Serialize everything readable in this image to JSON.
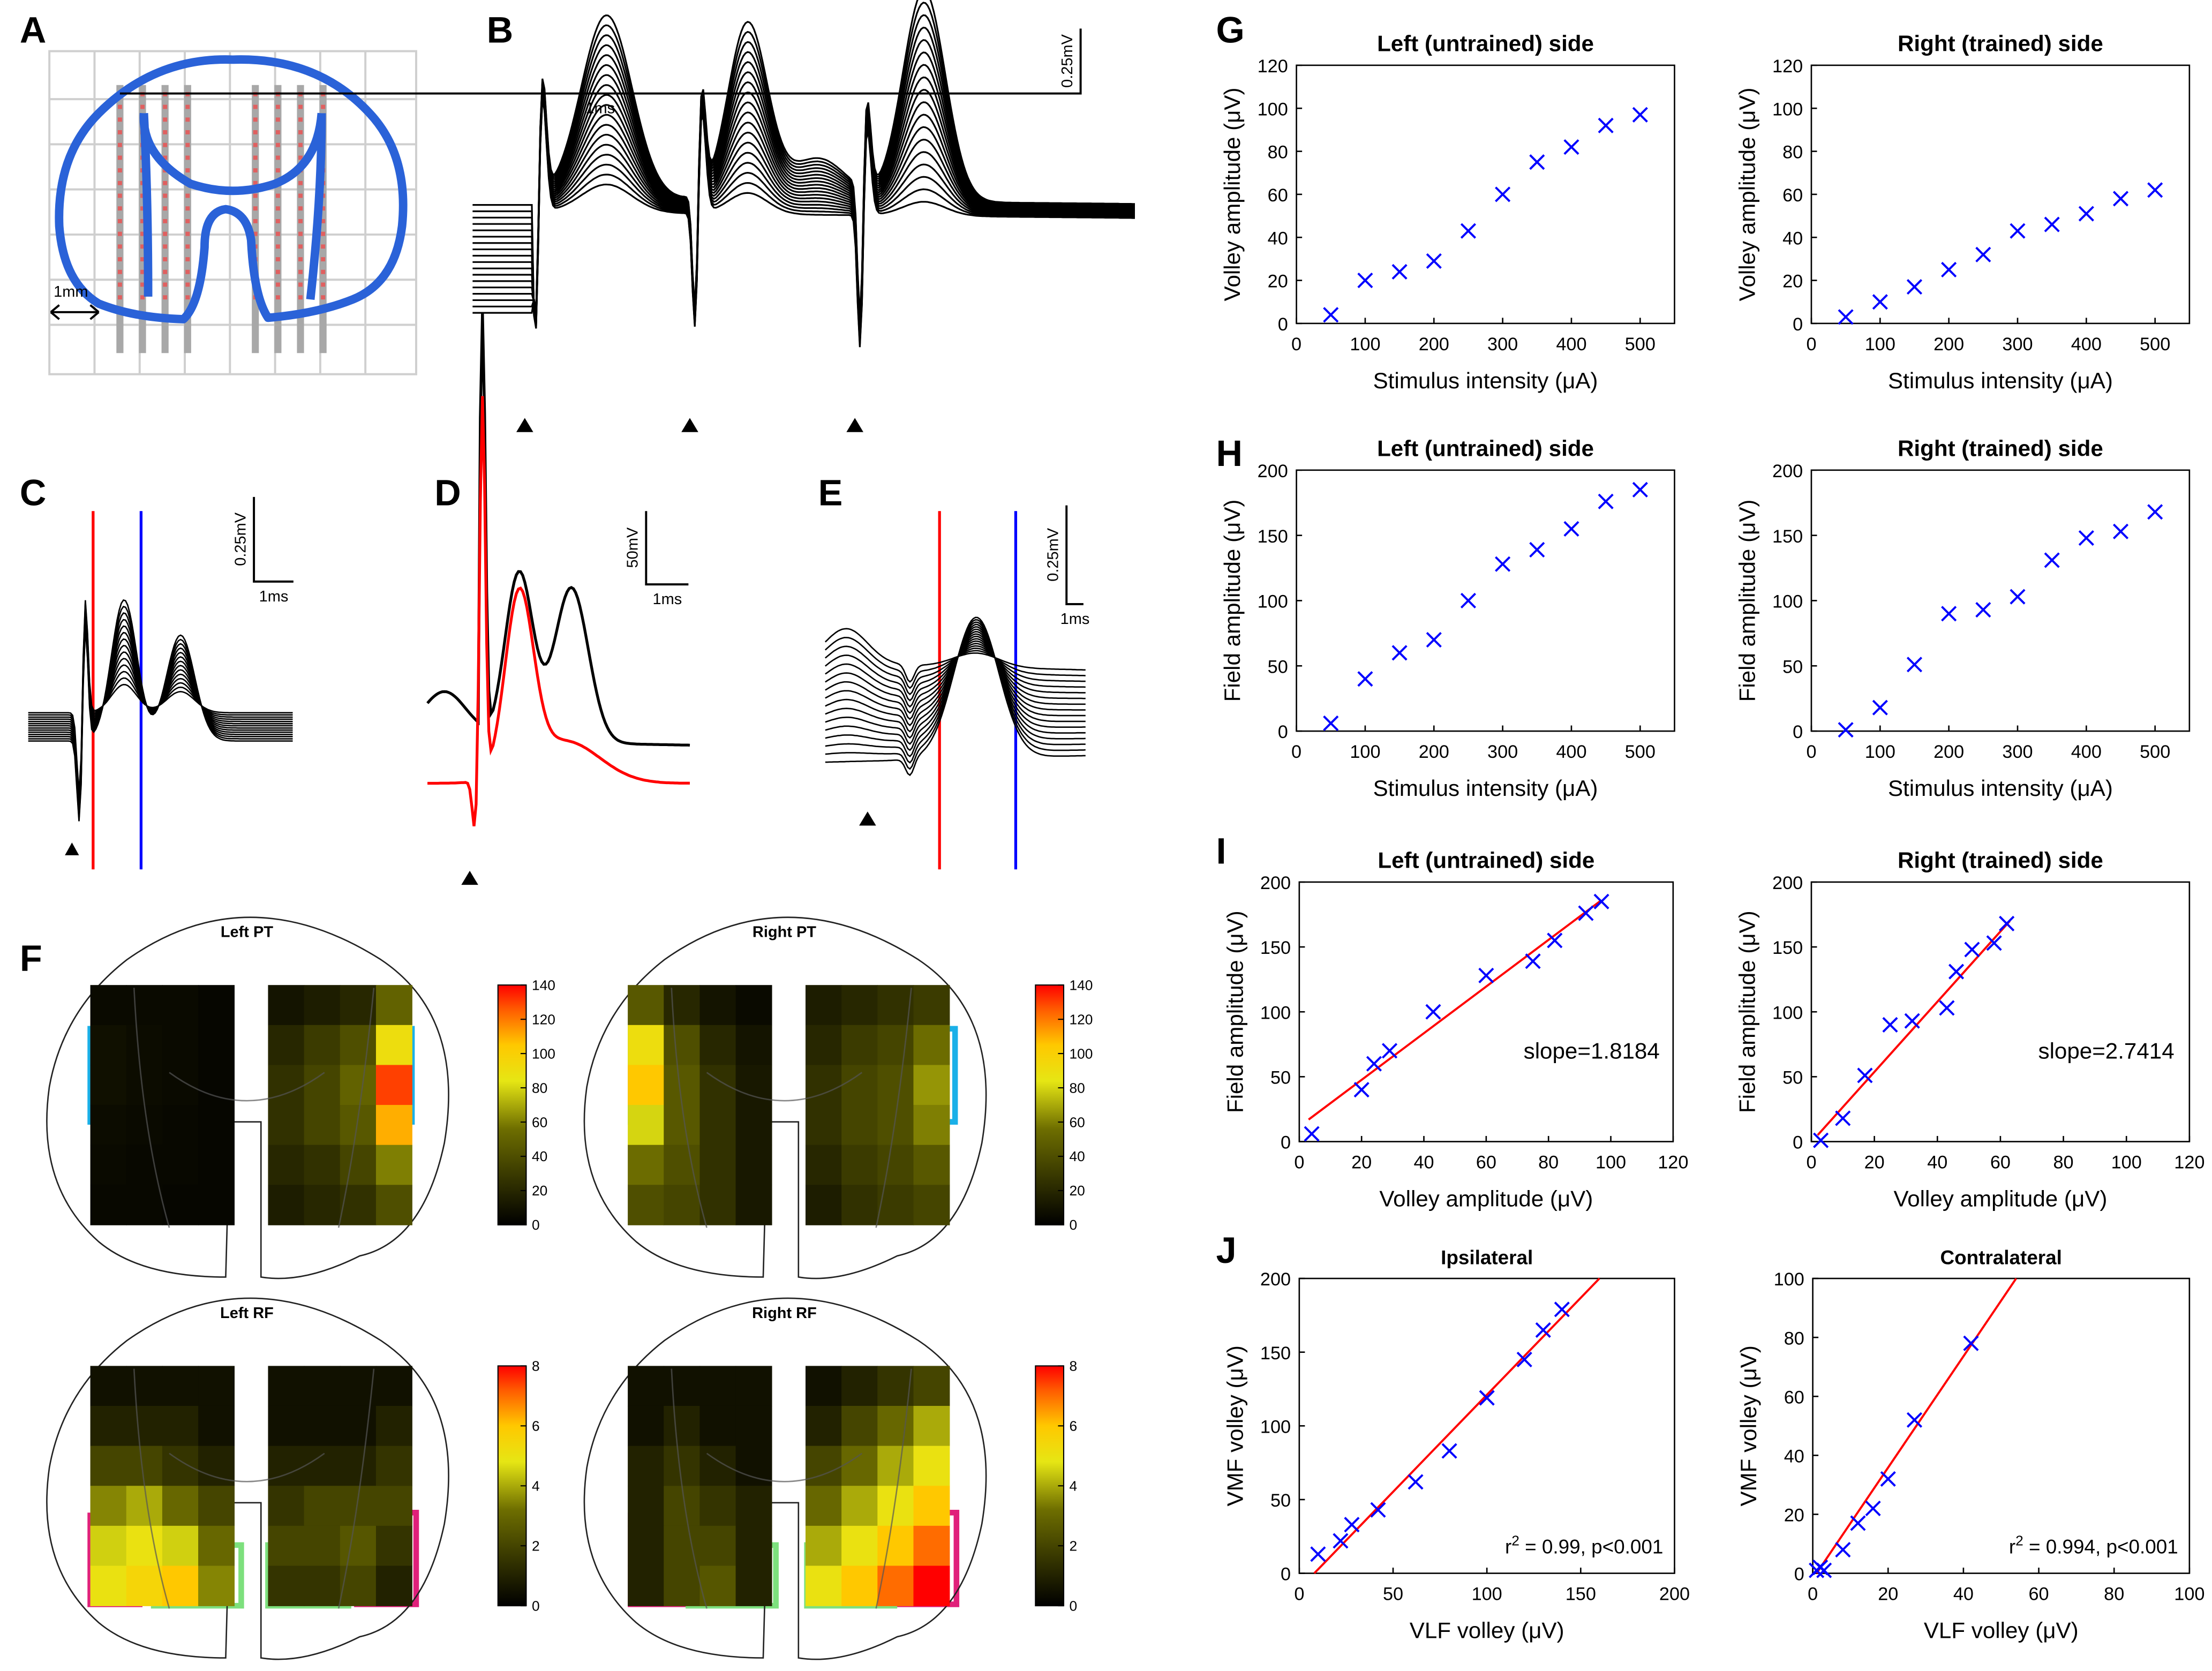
{
  "panel_labels": [
    "A",
    "B",
    "C",
    "D",
    "E",
    "F",
    "G",
    "H",
    "I",
    "J"
  ],
  "panel_a_scale": "1mm",
  "scale_bars": [
    {
      "v": "0.25mV",
      "h": "1ms"
    },
    {
      "v": "0.25mV",
      "h": "1ms"
    },
    {
      "v": "50mV",
      "h": "1ms"
    },
    {
      "v": "0.25mV",
      "h": "1ms"
    }
  ],
  "heatmaps": [
    {
      "title": "Left PT",
      "clim": [
        0,
        140
      ],
      "cticks": [
        0,
        20,
        40,
        60,
        80,
        100,
        120,
        140
      ],
      "left": [
        [
          5,
          5,
          5,
          3
        ],
        [
          8,
          6,
          5,
          3
        ],
        [
          8,
          6,
          5,
          3
        ],
        [
          6,
          5,
          4,
          3
        ],
        [
          5,
          4,
          4,
          3
        ],
        [
          4,
          4,
          3,
          3
        ]
      ],
      "right": [
        [
          10,
          15,
          20,
          50
        ],
        [
          20,
          30,
          40,
          90
        ],
        [
          25,
          35,
          50,
          130
        ],
        [
          25,
          35,
          45,
          110
        ],
        [
          20,
          25,
          35,
          60
        ],
        [
          15,
          20,
          25,
          40
        ]
      ]
    },
    {
      "title": "Right PT",
      "clim": [
        0,
        140
      ],
      "cticks": [
        0,
        20,
        40,
        60,
        80,
        100,
        120,
        140
      ],
      "left": [
        [
          45,
          20,
          10,
          5
        ],
        [
          90,
          40,
          20,
          10
        ],
        [
          105,
          45,
          25,
          12
        ],
        [
          80,
          45,
          25,
          12
        ],
        [
          55,
          40,
          25,
          12
        ],
        [
          40,
          35,
          25,
          12
        ]
      ],
      "right": [
        [
          15,
          20,
          25,
          30
        ],
        [
          20,
          30,
          35,
          55
        ],
        [
          25,
          35,
          40,
          65
        ],
        [
          25,
          35,
          40,
          60
        ],
        [
          20,
          30,
          35,
          45
        ],
        [
          15,
          25,
          30,
          35
        ]
      ]
    },
    {
      "title": "Left RF",
      "clim": [
        0,
        8
      ],
      "cticks": [
        0,
        2,
        4,
        6,
        8
      ],
      "left": [
        [
          0.5,
          0.5,
          0.5,
          0.5
        ],
        [
          1,
          1,
          1,
          0.5
        ],
        [
          2,
          2,
          1.5,
          1
        ],
        [
          3.5,
          4,
          3,
          2
        ],
        [
          4.5,
          5,
          4.5,
          3
        ],
        [
          5,
          5.5,
          6,
          3.5
        ]
      ],
      "right": [
        [
          0.5,
          0.5,
          0.5,
          0.5
        ],
        [
          0.5,
          0.5,
          0.5,
          1
        ],
        [
          1,
          1,
          1,
          1.5
        ],
        [
          1.5,
          2,
          2,
          2
        ],
        [
          2,
          2,
          2.5,
          1.5
        ],
        [
          1.5,
          1.5,
          2,
          1
        ]
      ]
    },
    {
      "title": "Right RF",
      "clim": [
        0,
        8
      ],
      "cticks": [
        0,
        2,
        4,
        6,
        8
      ],
      "left": [
        [
          0.5,
          0.5,
          0.5,
          0.5
        ],
        [
          0.5,
          1,
          0.5,
          0.5
        ],
        [
          1,
          1.5,
          1,
          0.5
        ],
        [
          1,
          2,
          1.5,
          1
        ],
        [
          1,
          2,
          2,
          1
        ],
        [
          1,
          2,
          2.5,
          1
        ]
      ],
      "right": [
        [
          0.5,
          1,
          1.5,
          2
        ],
        [
          1,
          2,
          3,
          4
        ],
        [
          2,
          3,
          4,
          5
        ],
        [
          3,
          4,
          5,
          6
        ],
        [
          4,
          5,
          6,
          7
        ],
        [
          5,
          6,
          7,
          8
        ]
      ]
    }
  ],
  "chart_data": [
    {
      "type": "scatter",
      "title": "Left (untrained) side",
      "x_label": "Stimulus intensity (μA)",
      "y_label": "Volley amplitude (μV)",
      "color": "#0000ff",
      "x": [
        50,
        100,
        150,
        200,
        250,
        300,
        350,
        400,
        450,
        500
      ],
      "y": [
        4,
        20,
        24,
        29,
        43,
        60,
        75,
        82,
        92,
        97
      ],
      "xlim": [
        0,
        550
      ],
      "xticks": [
        0,
        100,
        200,
        300,
        400,
        500
      ],
      "ylim": [
        0,
        120
      ],
      "yticks": [
        0,
        20,
        40,
        60,
        80,
        100,
        120
      ]
    },
    {
      "type": "scatter",
      "title": "Right (trained) side",
      "x_label": "Stimulus intensity (μA)",
      "y_label": "Volley amplitude (μV)",
      "color": "#0000ff",
      "x": [
        50,
        100,
        150,
        200,
        250,
        300,
        350,
        400,
        450,
        500
      ],
      "y": [
        3,
        10,
        17,
        25,
        32,
        43,
        46,
        51,
        58,
        62
      ],
      "xlim": [
        0,
        550
      ],
      "xticks": [
        0,
        100,
        200,
        300,
        400,
        500
      ],
      "ylim": [
        0,
        120
      ],
      "yticks": [
        0,
        20,
        40,
        60,
        80,
        100,
        120
      ]
    },
    {
      "type": "scatter",
      "title": "Left (untrained) side",
      "x_label": "Stimulus intensity (μA)",
      "y_label": "Field amplitude (μV)",
      "color": "#0000ff",
      "x": [
        50,
        100,
        150,
        200,
        250,
        300,
        350,
        400,
        450,
        500
      ],
      "y": [
        6,
        40,
        60,
        70,
        100,
        128,
        139,
        155,
        176,
        185
      ],
      "xlim": [
        0,
        550
      ],
      "xticks": [
        0,
        100,
        200,
        300,
        400,
        500
      ],
      "ylim": [
        0,
        200
      ],
      "yticks": [
        0,
        50,
        100,
        150,
        200
      ]
    },
    {
      "type": "scatter",
      "title": "Right (trained) side",
      "x_label": "Stimulus intensity (μA)",
      "y_label": "Field amplitude (μV)",
      "color": "#0000ff",
      "x": [
        50,
        100,
        150,
        200,
        250,
        300,
        350,
        400,
        450,
        500
      ],
      "y": [
        1,
        18,
        51,
        90,
        93,
        103,
        131,
        148,
        153,
        168
      ],
      "xlim": [
        0,
        550
      ],
      "xticks": [
        0,
        100,
        200,
        300,
        400,
        500
      ],
      "ylim": [
        0,
        200
      ],
      "yticks": [
        0,
        50,
        100,
        150,
        200
      ]
    },
    {
      "type": "scatter",
      "title": "Left (untrained) side",
      "x_label": "Volley amplitude (μV)",
      "y_label": "Field amplitude (μV)",
      "color": "#0000ff",
      "x": [
        4,
        20,
        24,
        29,
        43,
        60,
        75,
        82,
        92,
        97
      ],
      "y": [
        6,
        40,
        60,
        70,
        100,
        128,
        139,
        155,
        176,
        185
      ],
      "fit": {
        "x": [
          3,
          97
        ],
        "y": [
          17,
          186
        ],
        "color": "#ff0000"
      },
      "annotation": "slope=1.8184",
      "xlim": [
        0,
        120
      ],
      "xticks": [
        0,
        20,
        40,
        60,
        80,
        100,
        120
      ],
      "ylim": [
        0,
        200
      ],
      "yticks": [
        0,
        50,
        100,
        150,
        200
      ]
    },
    {
      "type": "scatter",
      "title": "Right (trained) side",
      "x_label": "Volley amplitude (μV)",
      "y_label": "Field amplitude (μV)",
      "color": "#0000ff",
      "x": [
        3,
        10,
        17,
        25,
        32,
        43,
        46,
        51,
        58,
        62
      ],
      "y": [
        1,
        18,
        51,
        90,
        93,
        103,
        131,
        148,
        153,
        168
      ],
      "fit": {
        "x": [
          2,
          63
        ],
        "y": [
          5,
          170
        ],
        "color": "#ff0000"
      },
      "annotation": "slope=2.7414",
      "xlim": [
        0,
        120
      ],
      "xticks": [
        0,
        20,
        40,
        60,
        80,
        100,
        120
      ],
      "ylim": [
        0,
        200
      ],
      "yticks": [
        0,
        50,
        100,
        150,
        200
      ]
    },
    {
      "type": "scatter",
      "title": "Ipsilateral",
      "x_label": "VLF volley (μV)",
      "y_label": "VMF volley (μV)",
      "color": "#0000ff",
      "x": [
        10,
        22,
        28,
        42,
        62,
        80,
        100,
        120,
        130,
        140
      ],
      "y": [
        13,
        22,
        33,
        43,
        62,
        83,
        119,
        145,
        165,
        179
      ],
      "fit": {
        "x": [
          8,
          160
        ],
        "y": [
          0,
          200
        ],
        "color": "#ff0000"
      },
      "annotation": {
        "base": "r",
        "sup": "2",
        "rest": " = 0.99, p<0.001"
      },
      "xlim": [
        0,
        200
      ],
      "xticks": [
        0,
        50,
        100,
        150,
        200
      ],
      "ylim": [
        0,
        200
      ],
      "yticks": [
        0,
        50,
        100,
        150,
        200
      ]
    },
    {
      "type": "scatter",
      "title": "Contralateral",
      "x_label": "VLF volley (μV)",
      "y_label": "VMF volley (μV)",
      "color": "#0000ff",
      "x": [
        1,
        2,
        3,
        8,
        12,
        16,
        20,
        27,
        42
      ],
      "y": [
        1,
        2,
        1,
        8,
        17,
        22,
        32,
        52,
        78
      ],
      "fit": {
        "x": [
          1,
          54
        ],
        "y": [
          0,
          100
        ],
        "color": "#ff0000"
      },
      "annotation": {
        "base": "r",
        "sup": "2",
        "rest": " = 0.994, p<0.001"
      },
      "xlim": [
        0,
        100
      ],
      "xticks": [
        0,
        20,
        40,
        60,
        80,
        100
      ],
      "ylim": [
        0,
        100
      ],
      "yticks": [
        0,
        20,
        40,
        60,
        80,
        100
      ]
    }
  ]
}
